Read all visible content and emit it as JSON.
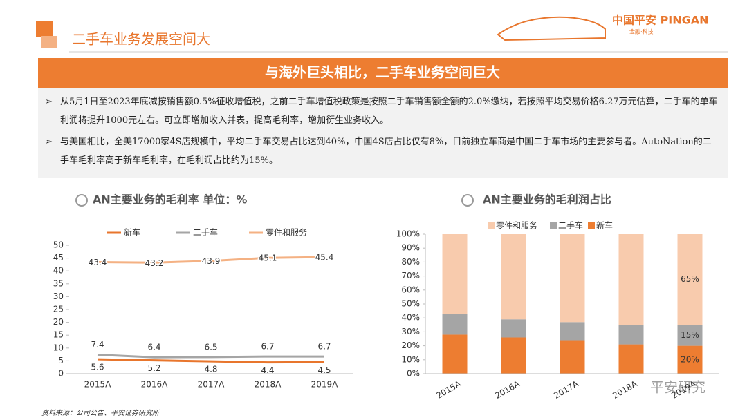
{
  "header": {
    "title": "二手车业务发展空间大",
    "logo": "中国平安 PINGAN",
    "logo_sub": "金融·科技"
  },
  "banner": "与海外巨头相比，二手车业务空间巨大",
  "bullets": [
    "从5月1日至2023年底减按销售额0.5%征收增值税，之前二手车增值税政策是按照二手车销售额全额的2.0%缴纳，若按照平均交易价格6.27万元估算，二手车的单车利润将提升1000元左右。可立即增加收入并表，提高毛利率，增加衍生业务收入。",
    "与美国相比，全美17000家4S店规模中，平均二手车交易占比达到40%，中国4S店占比仅有8%，目前独立车商是中国二手车市场的主要参与者。AutoNation的二手车毛利率高于新车毛利率，在毛利润占比约为15%。"
  ],
  "chart_data": [
    {
      "type": "line",
      "title": "AN主要业务的毛利率 单位：%",
      "categories": [
        "2015A",
        "2016A",
        "2017A",
        "2018A",
        "2019A"
      ],
      "series": [
        {
          "name": "新车",
          "color": "#e8762d",
          "values": [
            5.6,
            5.2,
            4.8,
            4.4,
            4.5
          ]
        },
        {
          "name": "二手车",
          "color": "#a5a5a5",
          "values": [
            7.4,
            6.4,
            6.5,
            6.7,
            6.7
          ]
        },
        {
          "name": "零件和服务",
          "color": "#f4b183",
          "values": [
            43.4,
            43.2,
            43.9,
            45.1,
            45.4
          ]
        }
      ],
      "ylim": [
        0,
        50
      ],
      "yticks": [
        0,
        5,
        10,
        15,
        20,
        25,
        30,
        35,
        40,
        45,
        50
      ]
    },
    {
      "type": "stacked-bar",
      "title": "AN主要业务的毛利润占比",
      "categories": [
        "2015A",
        "2016A",
        "2017A",
        "2018A",
        "2019A"
      ],
      "series": [
        {
          "name": "新车",
          "color": "#ed7d31",
          "values": [
            28,
            26,
            24,
            21,
            20
          ],
          "value_labels": [
            null,
            null,
            null,
            null,
            "20%"
          ]
        },
        {
          "name": "二手车",
          "color": "#a5a5a5",
          "values": [
            15,
            13,
            13,
            14,
            15
          ],
          "value_labels": [
            null,
            null,
            null,
            null,
            "15%"
          ]
        },
        {
          "name": "零件和服务",
          "color": "#f8cbad",
          "values": [
            57,
            61,
            63,
            65,
            65
          ],
          "value_labels": [
            null,
            null,
            null,
            null,
            "65%"
          ]
        }
      ],
      "ylim": [
        0,
        100
      ],
      "yticks": [
        {
          "value": 0,
          "label": "0%"
        },
        {
          "value": 10,
          "label": "10%"
        },
        {
          "value": 20,
          "label": "20%"
        },
        {
          "value": 30,
          "label": "30%"
        },
        {
          "value": 40,
          "label": "40%"
        },
        {
          "value": 50,
          "label": "50%"
        },
        {
          "value": 60,
          "label": "60%"
        },
        {
          "value": 70,
          "label": "70%"
        },
        {
          "value": 80,
          "label": "80%"
        },
        {
          "value": 90,
          "label": "90%"
        },
        {
          "value": 100,
          "label": "100%"
        }
      ]
    }
  ],
  "source": "资料来源：公司公告、平安证券研究所",
  "watermark": "平安研究"
}
